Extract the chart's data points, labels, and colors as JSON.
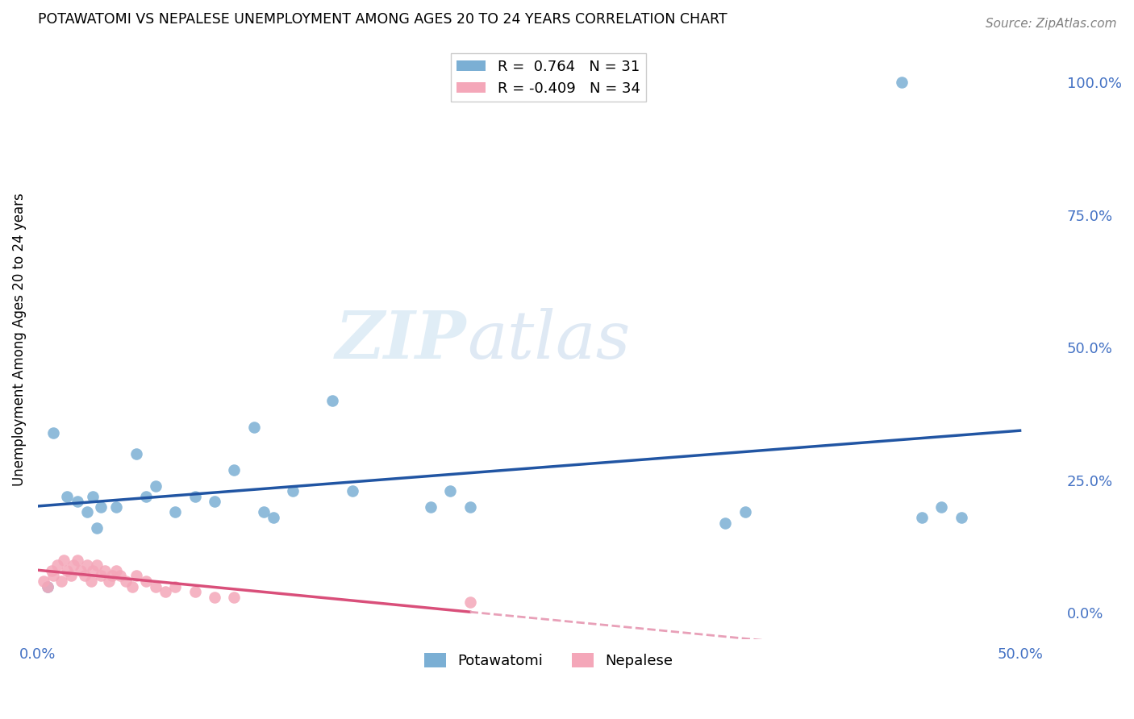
{
  "title": "POTAWATOMI VS NEPALESE UNEMPLOYMENT AMONG AGES 20 TO 24 YEARS CORRELATION CHART",
  "source": "Source: ZipAtlas.com",
  "tick_color": "#4472c4",
  "ylabel": "Unemployment Among Ages 20 to 24 years",
  "xlim": [
    0.0,
    0.52
  ],
  "ylim": [
    -0.05,
    1.08
  ],
  "yticks_right": [
    0.0,
    0.25,
    0.5,
    0.75,
    1.0
  ],
  "ytick_labels_right": [
    "0.0%",
    "25.0%",
    "50.0%",
    "75.0%",
    "100.0%"
  ],
  "grid_color": "#cccccc",
  "background_color": "#ffffff",
  "watermark_zip": "ZIP",
  "watermark_atlas": "atlas",
  "potawatomi_color": "#7bafd4",
  "nepalese_color": "#f4a7b9",
  "blue_line_color": "#2155a3",
  "pink_line_color": "#d94f7a",
  "pink_line_dashed_color": "#e8a0b8",
  "R_blue": 0.764,
  "N_blue": 31,
  "R_pink": -0.409,
  "N_pink": 34,
  "potawatomi_x": [
    0.005,
    0.008,
    0.015,
    0.02,
    0.025,
    0.028,
    0.03,
    0.032,
    0.04,
    0.05,
    0.055,
    0.06,
    0.07,
    0.08,
    0.09,
    0.1,
    0.11,
    0.115,
    0.12,
    0.13,
    0.15,
    0.16,
    0.2,
    0.21,
    0.22,
    0.35,
    0.36,
    0.45,
    0.46,
    0.47,
    0.44
  ],
  "potawatomi_y": [
    0.05,
    0.34,
    0.22,
    0.21,
    0.19,
    0.22,
    0.16,
    0.2,
    0.2,
    0.3,
    0.22,
    0.24,
    0.19,
    0.22,
    0.21,
    0.27,
    0.35,
    0.19,
    0.18,
    0.23,
    0.4,
    0.23,
    0.2,
    0.23,
    0.2,
    0.17,
    0.19,
    0.18,
    0.2,
    0.18,
    1.0
  ],
  "nepalese_x": [
    0.003,
    0.005,
    0.007,
    0.008,
    0.01,
    0.012,
    0.013,
    0.015,
    0.017,
    0.018,
    0.02,
    0.022,
    0.024,
    0.025,
    0.027,
    0.028,
    0.03,
    0.032,
    0.034,
    0.036,
    0.038,
    0.04,
    0.042,
    0.045,
    0.048,
    0.05,
    0.055,
    0.06,
    0.065,
    0.07,
    0.08,
    0.09,
    0.1,
    0.22
  ],
  "nepalese_y": [
    0.06,
    0.05,
    0.08,
    0.07,
    0.09,
    0.06,
    0.1,
    0.08,
    0.07,
    0.09,
    0.1,
    0.08,
    0.07,
    0.09,
    0.06,
    0.08,
    0.09,
    0.07,
    0.08,
    0.06,
    0.07,
    0.08,
    0.07,
    0.06,
    0.05,
    0.07,
    0.06,
    0.05,
    0.04,
    0.05,
    0.04,
    0.03,
    0.03,
    0.02
  ],
  "marker_size": 110
}
